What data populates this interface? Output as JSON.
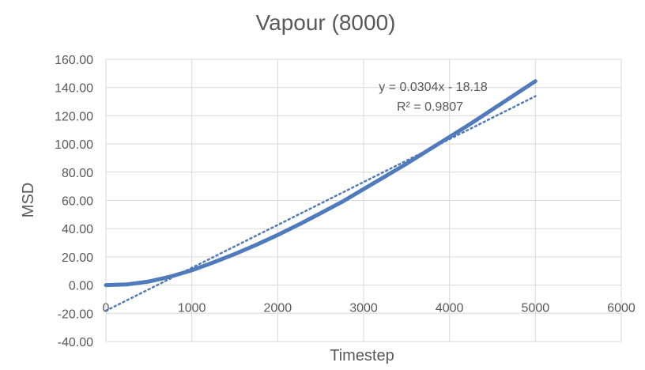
{
  "chart_data": {
    "type": "line",
    "title": "Vapour (8000)",
    "xlabel": "Timestep",
    "ylabel": "MSD",
    "xlim": [
      0,
      6000
    ],
    "ylim": [
      -40,
      160
    ],
    "x_ticks": [
      "0",
      "1000",
      "2000",
      "3000",
      "4000",
      "5000",
      "6000"
    ],
    "y_ticks": [
      "160.00",
      "140.00",
      "120.00",
      "100.00",
      "80.00",
      "60.00",
      "40.00",
      "20.00",
      "0.00",
      "-20.00",
      "-40.00"
    ],
    "grid": true,
    "series": [
      {
        "x": [
          0,
          250,
          500,
          750,
          1000,
          1250,
          1500,
          1750,
          2000,
          2250,
          2500,
          2750,
          3000,
          3250,
          3500,
          3750,
          4000,
          4250,
          4500,
          4750,
          5000
        ],
        "y": [
          0,
          0.5,
          2.5,
          6,
          10.5,
          16,
          22,
          28.5,
          35.5,
          43,
          51,
          59,
          68,
          77,
          86,
          95.5,
          105,
          114.5,
          124.5,
          134.5,
          144.5
        ],
        "color": "#4f7bbd"
      }
    ],
    "trendline": {
      "type": "linear",
      "slope": 0.0304,
      "intercept": -18.18,
      "x_range": [
        0,
        5000
      ],
      "color": "#4f7bbd",
      "equation": "y = 0.0304x - 18.18",
      "r_squared": "R² = 0.9807"
    }
  }
}
